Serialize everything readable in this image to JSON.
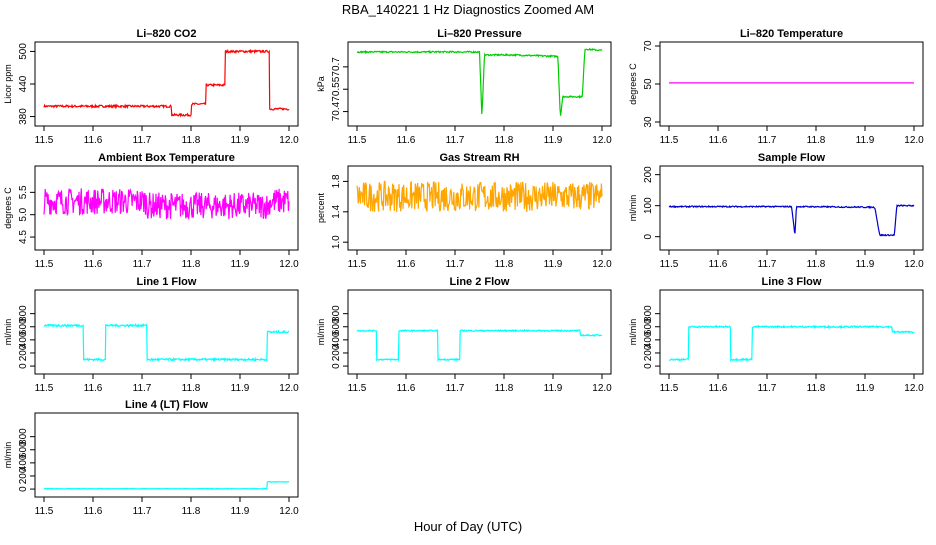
{
  "title": "RBA_140221  1 Hz Diagnostics Zoomed AM",
  "xlabel": "Hour of Day (UTC)",
  "chart_data": [
    {
      "type": "line",
      "title": "Li–820 CO2",
      "ylabel": "Licor ppm",
      "color": "#ff0000",
      "xlim": [
        11.5,
        12.0
      ],
      "ylim": [
        370,
        510
      ],
      "xticks": [
        "11.5",
        "11.6",
        "11.7",
        "11.8",
        "11.9",
        "12.0"
      ],
      "yticks": [
        380,
        440,
        500
      ],
      "ytick_labels": [
        "380",
        "440",
        "500"
      ],
      "x": [
        11.5,
        11.76,
        11.76,
        11.8,
        11.8,
        11.83,
        11.83,
        11.87,
        11.87,
        11.96,
        11.96,
        12.0
      ],
      "y": [
        399,
        399,
        383,
        383,
        403,
        403,
        438,
        438,
        500,
        500,
        394,
        394
      ],
      "noise": 2
    },
    {
      "type": "line",
      "title": "Li–820 Pressure",
      "ylabel": "kPa",
      "color": "#00cc00",
      "xlim": [
        11.5,
        12.0
      ],
      "ylim": [
        70.33,
        70.84
      ],
      "xticks": [
        "11.5",
        "11.6",
        "11.7",
        "11.8",
        "11.9",
        "12.0"
      ],
      "yticks": [
        70.4,
        70.55,
        70.7
      ],
      "ytick_labels": [
        "70.4",
        "70.55",
        "70.7"
      ],
      "x": [
        11.5,
        11.75,
        11.755,
        11.76,
        11.82,
        11.82,
        11.91,
        11.915,
        11.92,
        11.93,
        11.93,
        11.96,
        11.965,
        12.0
      ],
      "y": [
        70.8,
        70.8,
        70.36,
        70.78,
        70.78,
        70.78,
        70.77,
        70.36,
        70.5,
        70.5,
        70.5,
        70.5,
        70.82,
        70.81
      ],
      "noise": 0.005
    },
    {
      "type": "line",
      "title": "Li–820 Temperature",
      "ylabel": "degrees C",
      "color": "#ff00ff",
      "xlim": [
        11.5,
        12.0
      ],
      "ylim": [
        30,
        70
      ],
      "xticks": [
        "11.5",
        "11.6",
        "11.7",
        "11.8",
        "11.9",
        "12.0"
      ],
      "yticks": [
        30,
        50,
        70
      ],
      "ytick_labels": [
        "30",
        "50",
        "70"
      ],
      "x": [
        11.5,
        12.0
      ],
      "y": [
        50.6,
        50.6
      ],
      "noise": 0
    },
    {
      "type": "line",
      "title": "Ambient Box Temperature",
      "ylabel": "degrees C",
      "color": "#ff00ff",
      "xlim": [
        11.5,
        12.0
      ],
      "ylim": [
        4.3,
        6.0
      ],
      "xticks": [
        "11.5",
        "11.6",
        "11.7",
        "11.8",
        "11.9",
        "12.0"
      ],
      "yticks": [
        4.5,
        5.0,
        5.5
      ],
      "ytick_labels": [
        "4.5",
        "5.0",
        "5.5"
      ],
      "x": [
        11.5,
        11.71,
        11.71,
        11.96,
        11.96,
        12.0
      ],
      "y": [
        5.3,
        5.3,
        5.2,
        5.2,
        5.3,
        5.3
      ],
      "noise": 0.3
    },
    {
      "type": "line",
      "title": "Gas Stream RH",
      "ylabel": "percent",
      "color": "#ffa500",
      "xlim": [
        11.5,
        12.0
      ],
      "ylim": [
        0.95,
        1.95
      ],
      "xticks": [
        "11.5",
        "11.6",
        "11.7",
        "11.8",
        "11.9",
        "12.0"
      ],
      "yticks": [
        1.0,
        1.4,
        1.8
      ],
      "ytick_labels": [
        "1.0",
        "1.4",
        "1.8"
      ],
      "x": [
        11.5,
        12.0
      ],
      "y": [
        1.6,
        1.6
      ],
      "noise": 0.2
    },
    {
      "type": "line",
      "title": "Sample Flow",
      "ylabel": "ml/min",
      "color": "#0000cc",
      "xlim": [
        11.5,
        12.0
      ],
      "ylim": [
        -30,
        215
      ],
      "xticks": [
        "11.5",
        "11.6",
        "11.7",
        "11.8",
        "11.9",
        "12.0"
      ],
      "yticks": [
        0,
        100,
        200
      ],
      "ytick_labels": [
        "0",
        "100",
        "200"
      ],
      "x": [
        11.5,
        11.75,
        11.753,
        11.757,
        11.76,
        11.92,
        11.93,
        11.96,
        11.965,
        12.0
      ],
      "y": [
        97,
        97,
        60,
        5,
        97,
        95,
        5,
        5,
        100,
        100
      ],
      "noise": 2
    },
    {
      "type": "line",
      "title": "Line 1 Flow",
      "ylabel": "ml/min",
      "color": "#00ffff",
      "xlim": [
        11.5,
        12.0
      ],
      "ylim": [
        -60,
        1100
      ],
      "xticks": [
        "11.5",
        "11.6",
        "11.7",
        "11.8",
        "11.9",
        "12.0"
      ],
      "yticks": [
        0,
        200,
        400,
        600,
        800
      ],
      "ytick_labels": [
        "0",
        "200",
        "400",
        "600",
        "800"
      ],
      "x": [
        11.5,
        11.58,
        11.58,
        11.625,
        11.625,
        11.71,
        11.71,
        11.955,
        11.955,
        12.0
      ],
      "y": [
        620,
        620,
        100,
        100,
        620,
        620,
        100,
        100,
        520,
        520
      ],
      "noise": 15
    },
    {
      "type": "line",
      "title": "Line 2 Flow",
      "ylabel": "ml/min",
      "color": "#00ffff",
      "xlim": [
        11.5,
        12.0
      ],
      "ylim": [
        -60,
        1100
      ],
      "xticks": [
        "11.5",
        "11.6",
        "11.7",
        "11.8",
        "11.9",
        "12.0"
      ],
      "yticks": [
        0,
        200,
        400,
        600,
        800
      ],
      "ytick_labels": [
        "0",
        "200",
        "400",
        "600",
        "800"
      ],
      "x": [
        11.5,
        11.54,
        11.54,
        11.585,
        11.585,
        11.665,
        11.665,
        11.71,
        11.71,
        11.955,
        11.955,
        12.0
      ],
      "y": [
        540,
        540,
        100,
        100,
        540,
        540,
        100,
        100,
        540,
        540,
        470,
        470
      ],
      "noise": 10
    },
    {
      "type": "line",
      "title": "Line 3 Flow",
      "ylabel": "ml/min",
      "color": "#00ffff",
      "xlim": [
        11.5,
        12.0
      ],
      "ylim": [
        -60,
        1100
      ],
      "xticks": [
        "11.5",
        "11.6",
        "11.7",
        "11.8",
        "11.9",
        "12.0"
      ],
      "yticks": [
        0,
        200,
        400,
        600,
        800
      ],
      "ytick_labels": [
        "0",
        "200",
        "400",
        "600",
        "800"
      ],
      "x": [
        11.5,
        11.54,
        11.54,
        11.625,
        11.625,
        11.67,
        11.67,
        11.955,
        11.955,
        12.0
      ],
      "y": [
        100,
        100,
        600,
        600,
        100,
        100,
        600,
        600,
        520,
        520
      ],
      "noise": 12
    },
    {
      "type": "line",
      "title": "Line 4 (LT) Flow",
      "ylabel": "ml/min",
      "color": "#00ffff",
      "xlim": [
        11.5,
        12.0
      ],
      "ylim": [
        -60,
        1100
      ],
      "xticks": [
        "11.5",
        "11.6",
        "11.7",
        "11.8",
        "11.9",
        "12.0"
      ],
      "yticks": [
        0,
        200,
        400,
        600,
        800
      ],
      "ytick_labels": [
        "0",
        "200",
        "400",
        "600",
        "800"
      ],
      "x": [
        11.5,
        11.955,
        11.955,
        12.0
      ],
      "y": [
        5,
        5,
        110,
        110
      ],
      "noise": 4
    }
  ]
}
